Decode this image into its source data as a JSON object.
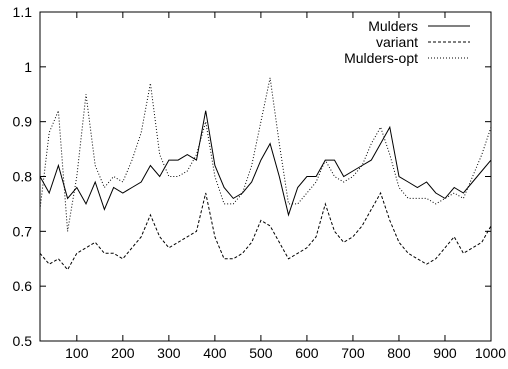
{
  "chart_data": {
    "type": "line",
    "title": "",
    "xlabel": "",
    "ylabel": "",
    "xlim": [
      20,
      1000
    ],
    "ylim": [
      0.5,
      1.1
    ],
    "x_ticks": [
      100,
      200,
      300,
      400,
      500,
      600,
      700,
      800,
      900,
      1000
    ],
    "x_tick_labels": [
      "100",
      "200",
      "300",
      "400",
      "500",
      "600",
      "700",
      "800",
      "900",
      "1000"
    ],
    "y_ticks": [
      0.5,
      0.6,
      0.7,
      0.8,
      0.9,
      1.0,
      1.1
    ],
    "y_tick_labels": [
      "0.5",
      "0.6",
      "0.7",
      "0.8",
      "0.9",
      "1",
      "1.1"
    ],
    "grid": false,
    "legend_position": "top-right",
    "series": [
      {
        "name": "Mulders",
        "style": "solid",
        "color": "#000000",
        "x": [
          20,
          40,
          60,
          80,
          100,
          120,
          140,
          160,
          180,
          200,
          220,
          240,
          260,
          280,
          300,
          320,
          340,
          360,
          380,
          400,
          420,
          440,
          460,
          480,
          500,
          520,
          540,
          560,
          580,
          600,
          620,
          640,
          660,
          680,
          700,
          720,
          740,
          760,
          780,
          800,
          820,
          840,
          860,
          880,
          900,
          920,
          940,
          960,
          980,
          1000
        ],
        "y": [
          0.8,
          0.77,
          0.82,
          0.76,
          0.78,
          0.75,
          0.79,
          0.74,
          0.78,
          0.77,
          0.78,
          0.79,
          0.82,
          0.8,
          0.83,
          0.83,
          0.84,
          0.83,
          0.92,
          0.82,
          0.78,
          0.76,
          0.77,
          0.79,
          0.83,
          0.86,
          0.8,
          0.73,
          0.78,
          0.8,
          0.8,
          0.83,
          0.83,
          0.8,
          0.81,
          0.82,
          0.83,
          0.86,
          0.89,
          0.8,
          0.79,
          0.78,
          0.79,
          0.77,
          0.76,
          0.78,
          0.77,
          0.79,
          0.81,
          0.83
        ]
      },
      {
        "name": "variant",
        "style": "dashed",
        "color": "#000000",
        "x": [
          20,
          40,
          60,
          80,
          100,
          120,
          140,
          160,
          180,
          200,
          220,
          240,
          260,
          280,
          300,
          320,
          340,
          360,
          380,
          400,
          420,
          440,
          460,
          480,
          500,
          520,
          540,
          560,
          580,
          600,
          620,
          640,
          660,
          680,
          700,
          720,
          740,
          760,
          780,
          800,
          820,
          840,
          860,
          880,
          900,
          920,
          940,
          960,
          980,
          1000
        ],
        "y": [
          0.66,
          0.64,
          0.65,
          0.63,
          0.66,
          0.67,
          0.68,
          0.66,
          0.66,
          0.65,
          0.67,
          0.69,
          0.73,
          0.69,
          0.67,
          0.68,
          0.69,
          0.7,
          0.77,
          0.69,
          0.65,
          0.65,
          0.66,
          0.68,
          0.72,
          0.71,
          0.68,
          0.65,
          0.66,
          0.67,
          0.69,
          0.75,
          0.7,
          0.68,
          0.69,
          0.71,
          0.74,
          0.77,
          0.72,
          0.68,
          0.66,
          0.65,
          0.64,
          0.65,
          0.67,
          0.69,
          0.66,
          0.67,
          0.68,
          0.71
        ]
      },
      {
        "name": "Mulders-opt",
        "style": "dotted",
        "color": "#000000",
        "x": [
          20,
          40,
          60,
          80,
          100,
          120,
          140,
          160,
          180,
          200,
          220,
          240,
          260,
          280,
          300,
          320,
          340,
          360,
          380,
          400,
          420,
          440,
          460,
          480,
          500,
          520,
          540,
          560,
          580,
          600,
          620,
          640,
          660,
          680,
          700,
          720,
          740,
          760,
          780,
          800,
          820,
          840,
          860,
          880,
          900,
          920,
          940,
          960,
          980,
          1000
        ],
        "y": [
          0.74,
          0.88,
          0.92,
          0.7,
          0.8,
          0.95,
          0.82,
          0.78,
          0.8,
          0.79,
          0.83,
          0.88,
          0.97,
          0.84,
          0.8,
          0.8,
          0.81,
          0.84,
          0.9,
          0.8,
          0.75,
          0.75,
          0.77,
          0.82,
          0.9,
          0.98,
          0.86,
          0.75,
          0.75,
          0.77,
          0.79,
          0.83,
          0.8,
          0.79,
          0.8,
          0.82,
          0.86,
          0.89,
          0.84,
          0.78,
          0.76,
          0.76,
          0.76,
          0.75,
          0.76,
          0.77,
          0.76,
          0.8,
          0.84,
          0.89
        ]
      }
    ]
  }
}
